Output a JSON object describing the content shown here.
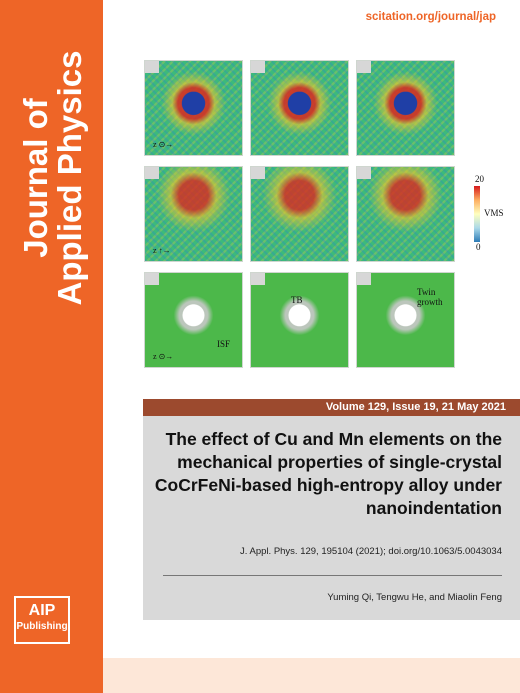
{
  "journal": {
    "title_line1": "Journal of",
    "title_line2": "Applied Physics",
    "url": "scitation.org/journal/jap",
    "publisher_line1": "AIP",
    "publisher_line2": "Publishing"
  },
  "issue": {
    "volume_line": "Volume 129, Issue 19, 21 May 2021"
  },
  "article": {
    "title": "The effect of Cu and Mn elements on the mechanical properties of single-crystal CoCrFeNi-based high-entropy alloy under nanoindentation",
    "citation": "J. Appl. Phys. 129, 195104 (2021); doi.org/10.1063/5.0043034",
    "authors": "Yuming Qi, Tengwu He, and Miaolin Feng"
  },
  "figure": {
    "colorbar_max": "20",
    "colorbar_label": "VMS",
    "colorbar_min": "0",
    "label_isf": "ISF",
    "label_tb": "TB",
    "label_twin_growth": "Twin growth",
    "axis_z": "z"
  },
  "colors": {
    "spine": "#ee6527",
    "volume_bar": "#9c4a2e",
    "info_box": "#d9d9d9",
    "url_text": "#ee6527"
  }
}
